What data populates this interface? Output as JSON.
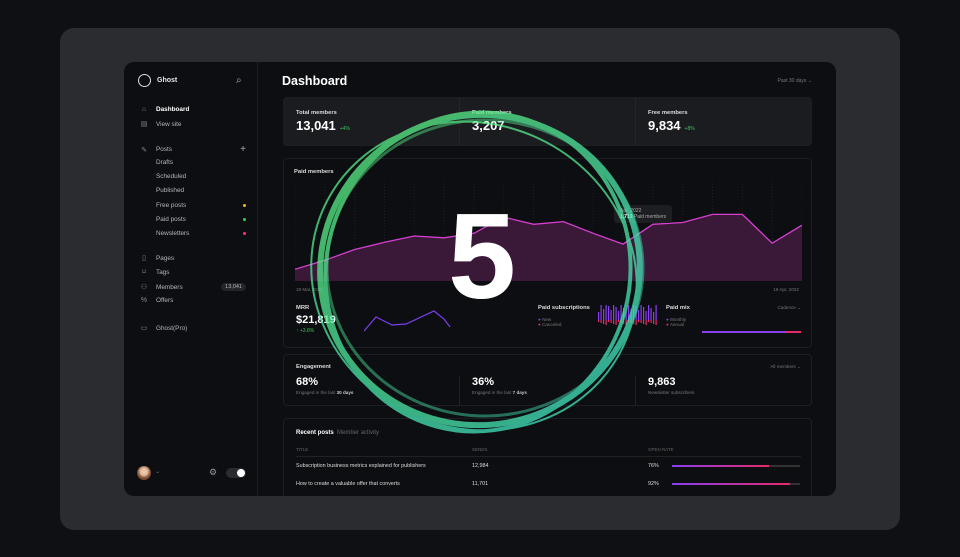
{
  "sidebar": {
    "brand": "Ghost",
    "items": [
      {
        "label": "Dashboard",
        "icon": "home-icon",
        "active": true
      },
      {
        "label": "View site",
        "icon": "layout-icon"
      },
      {
        "label": "Posts",
        "icon": "edit-icon"
      },
      {
        "label": "Drafts"
      },
      {
        "label": "Scheduled"
      },
      {
        "label": "Published"
      },
      {
        "label": "Free posts",
        "dot": "#f0b429"
      },
      {
        "label": "Paid posts",
        "dot": "#30d158"
      },
      {
        "label": "Newsletters",
        "dot": "#ff2d78"
      },
      {
        "label": "Pages",
        "icon": "page-icon"
      },
      {
        "label": "Tags",
        "icon": "tag-icon"
      },
      {
        "label": "Members",
        "icon": "members-icon",
        "badge": "13,041"
      },
      {
        "label": "Offers",
        "icon": "percent-icon"
      },
      {
        "label": "Ghost(Pro)",
        "icon": "card-icon"
      }
    ]
  },
  "header": {
    "title": "Dashboard",
    "range": "Past 30 days"
  },
  "stats": [
    {
      "label": "Total members",
      "value": "13,041",
      "change": "+4%"
    },
    {
      "label": "Paid members",
      "value": "3,207",
      "change": ""
    },
    {
      "label": "Free members",
      "value": "9,834",
      "change": "+8%"
    }
  ],
  "paid_chart": {
    "title": "Paid members",
    "start": "19 Mar, 2022",
    "end": "19 Apr, 2022",
    "tooltip_date": "Apr, 2022",
    "tooltip_value": "1,719",
    "tooltip_label": "Paid members"
  },
  "chart_data": {
    "type": "area",
    "title": "Paid members",
    "x": [
      "19 Mar, 2022",
      "",
      "",
      "",
      "",
      "",
      "",
      "",
      "",
      "",
      "",
      "",
      "",
      "",
      "",
      "",
      "",
      "19 Apr, 2022"
    ],
    "values": [
      13,
      23,
      35,
      43,
      50,
      48,
      53,
      71,
      63,
      66,
      53,
      41,
      63,
      65,
      74,
      74,
      42,
      62
    ],
    "color": "#d63fd0"
  },
  "mrr": {
    "label": "MRR",
    "value": "$21,819",
    "change": "+3.8%"
  },
  "subs": {
    "label": "Paid subscriptions",
    "legend": [
      "New",
      "Canceled"
    ]
  },
  "mix": {
    "label": "Paid mix",
    "select": "Cadence",
    "legend": [
      "Monthly",
      "Annual"
    ],
    "monthly_pct": 85
  },
  "engagement": {
    "title": "Engagement",
    "select": "All members",
    "items": [
      {
        "value": "68%",
        "label": "Engaged in the last ",
        "bold": "30 days"
      },
      {
        "value": "36%",
        "label": "Engaged in the last ",
        "bold": "7 days"
      },
      {
        "value": "9,863",
        "label": "Newsletter subscribers",
        "bold": ""
      }
    ]
  },
  "posts": {
    "tabs": [
      "Recent posts",
      "Member activity"
    ],
    "columns": [
      "TITLE",
      "SENDS",
      "OPEN RATE"
    ],
    "rows": [
      {
        "title": "Subscription business metrics explained for publishers",
        "sends": "12,984",
        "rate": "76%",
        "pct": 76
      },
      {
        "title": "How to create a valuable offer that converts",
        "sends": "11,701",
        "rate": "92%",
        "pct": 92
      }
    ]
  },
  "overlay": {
    "number": "5"
  }
}
